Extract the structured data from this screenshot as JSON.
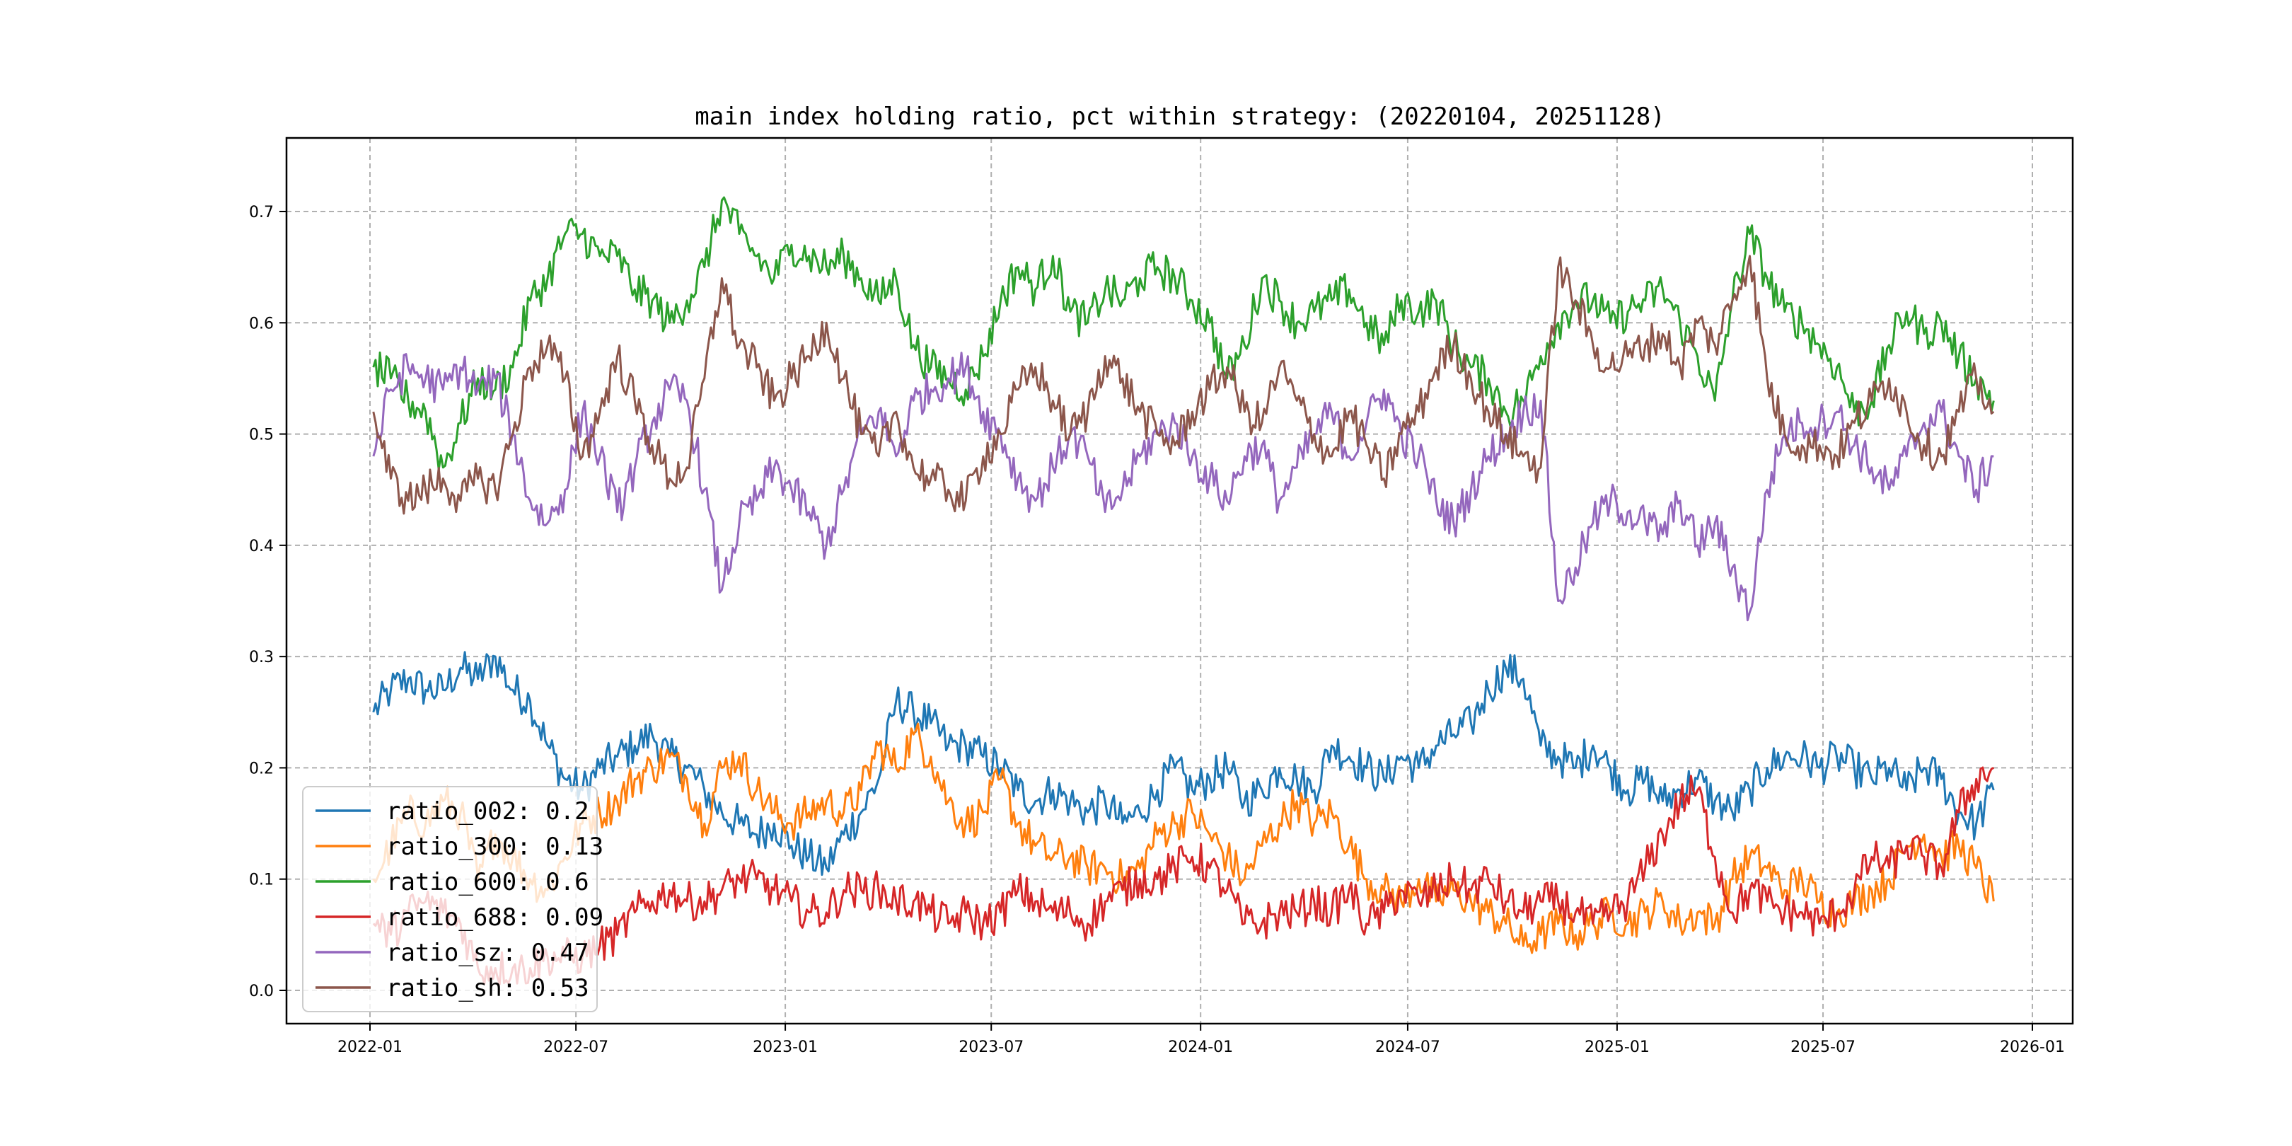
{
  "chart_data": {
    "type": "line",
    "title": "main index holding ratio, pct within strategy: (20220104, 20251128)",
    "xlabel": "",
    "ylabel": "",
    "ylim": [
      -0.035,
      0.765
    ],
    "xlim": [
      "2021-11-15",
      "2026-01-20"
    ],
    "grid": true,
    "legend_position": "lower-left",
    "x_ticks": [
      "2022-01",
      "2022-07",
      "2023-01",
      "2023-07",
      "2024-01",
      "2024-07",
      "2025-01",
      "2025-07",
      "2026-01"
    ],
    "y_ticks": [
      "0.0",
      "0.1",
      "0.2",
      "0.3",
      "0.4",
      "0.5",
      "0.6",
      "0.7"
    ],
    "x_start": "2022-01-04",
    "x_end": "2025-11-28",
    "sampling": "semi-monthly",
    "series": [
      {
        "name": "ratio_002",
        "legend": "ratio_002: 0.2",
        "color": "#1f77b4",
        "values": [
          0.25,
          0.27,
          0.28,
          0.27,
          0.27,
          0.29,
          0.28,
          0.3,
          0.27,
          0.26,
          0.22,
          0.19,
          0.18,
          0.2,
          0.21,
          0.22,
          0.23,
          0.21,
          0.2,
          0.18,
          0.16,
          0.15,
          0.14,
          0.15,
          0.13,
          0.12,
          0.11,
          0.14,
          0.16,
          0.19,
          0.26,
          0.25,
          0.24,
          0.22,
          0.22,
          0.21,
          0.2,
          0.18,
          0.17,
          0.18,
          0.17,
          0.16,
          0.17,
          0.15,
          0.16,
          0.18,
          0.2,
          0.18,
          0.19,
          0.2,
          0.17,
          0.18,
          0.2,
          0.19,
          0.18,
          0.22,
          0.21,
          0.2,
          0.19,
          0.21,
          0.2,
          0.22,
          0.23,
          0.24,
          0.27,
          0.29,
          0.28,
          0.22,
          0.21,
          0.2,
          0.22,
          0.2,
          0.18,
          0.19,
          0.17,
          0.18,
          0.19,
          0.17,
          0.16,
          0.18,
          0.2,
          0.21,
          0.21,
          0.2,
          0.21,
          0.2,
          0.19,
          0.2,
          0.18,
          0.2,
          0.19,
          0.16,
          0.15,
          0.18
        ]
      },
      {
        "name": "ratio_300",
        "legend": "ratio_300: 0.13",
        "color": "#ff7f0e",
        "values": [
          0.1,
          0.13,
          0.16,
          0.15,
          0.17,
          0.16,
          0.1,
          0.14,
          0.12,
          0.1,
          0.09,
          0.12,
          0.15,
          0.16,
          0.17,
          0.19,
          0.2,
          0.21,
          0.19,
          0.15,
          0.2,
          0.21,
          0.18,
          0.16,
          0.15,
          0.16,
          0.17,
          0.16,
          0.18,
          0.22,
          0.2,
          0.23,
          0.21,
          0.17,
          0.15,
          0.16,
          0.19,
          0.15,
          0.13,
          0.12,
          0.12,
          0.11,
          0.11,
          0.1,
          0.11,
          0.14,
          0.15,
          0.16,
          0.14,
          0.12,
          0.1,
          0.13,
          0.15,
          0.17,
          0.15,
          0.16,
          0.13,
          0.1,
          0.09,
          0.08,
          0.1,
          0.08,
          0.09,
          0.08,
          0.07,
          0.06,
          0.04,
          0.05,
          0.06,
          0.05,
          0.06,
          0.07,
          0.06,
          0.07,
          0.08,
          0.06,
          0.07,
          0.06,
          0.1,
          0.12,
          0.11,
          0.09,
          0.1,
          0.08,
          0.07,
          0.08,
          0.09,
          0.1,
          0.13,
          0.14,
          0.12,
          0.13,
          0.11,
          0.08
        ]
      },
      {
        "name": "ratio_600",
        "legend": "ratio_600: 0.6",
        "color": "#2ca02c",
        "values": [
          0.56,
          0.55,
          0.53,
          0.52,
          0.47,
          0.51,
          0.55,
          0.54,
          0.56,
          0.62,
          0.64,
          0.68,
          0.68,
          0.66,
          0.66,
          0.63,
          0.62,
          0.6,
          0.62,
          0.65,
          0.71,
          0.68,
          0.66,
          0.64,
          0.67,
          0.66,
          0.65,
          0.66,
          0.64,
          0.62,
          0.64,
          0.58,
          0.56,
          0.55,
          0.54,
          0.57,
          0.62,
          0.65,
          0.63,
          0.66,
          0.61,
          0.6,
          0.63,
          0.62,
          0.64,
          0.65,
          0.64,
          0.62,
          0.6,
          0.55,
          0.58,
          0.64,
          0.62,
          0.6,
          0.61,
          0.62,
          0.63,
          0.6,
          0.58,
          0.62,
          0.61,
          0.62,
          0.58,
          0.56,
          0.55,
          0.52,
          0.53,
          0.57,
          0.6,
          0.62,
          0.62,
          0.6,
          0.61,
          0.62,
          0.63,
          0.6,
          0.57,
          0.53,
          0.62,
          0.68,
          0.64,
          0.61,
          0.6,
          0.58,
          0.56,
          0.52,
          0.53,
          0.58,
          0.61,
          0.59,
          0.6,
          0.57,
          0.55,
          0.53
        ]
      },
      {
        "name": "ratio_688",
        "legend": "ratio_688: 0.09",
        "color": "#d62728",
        "values": [
          0.06,
          0.05,
          0.07,
          0.08,
          0.07,
          0.06,
          0.02,
          0.02,
          0.02,
          0.02,
          0.03,
          0.03,
          0.03,
          0.04,
          0.05,
          0.07,
          0.08,
          0.09,
          0.08,
          0.08,
          0.09,
          0.1,
          0.1,
          0.09,
          0.08,
          0.07,
          0.07,
          0.09,
          0.09,
          0.09,
          0.08,
          0.08,
          0.07,
          0.06,
          0.07,
          0.06,
          0.07,
          0.09,
          0.08,
          0.07,
          0.07,
          0.06,
          0.08,
          0.09,
          0.1,
          0.1,
          0.11,
          0.12,
          0.11,
          0.09,
          0.06,
          0.06,
          0.07,
          0.07,
          0.08,
          0.07,
          0.09,
          0.06,
          0.07,
          0.09,
          0.08,
          0.09,
          0.1,
          0.09,
          0.1,
          0.08,
          0.07,
          0.08,
          0.08,
          0.07,
          0.06,
          0.07,
          0.08,
          0.11,
          0.14,
          0.17,
          0.18,
          0.12,
          0.07,
          0.09,
          0.08,
          0.07,
          0.07,
          0.06,
          0.07,
          0.09,
          0.12,
          0.11,
          0.13,
          0.12,
          0.11,
          0.16,
          0.19,
          0.2
        ]
      },
      {
        "name": "ratio_sz",
        "legend": "ratio_sz: 0.47",
        "color": "#9467bd",
        "values": [
          0.48,
          0.54,
          0.56,
          0.55,
          0.54,
          0.56,
          0.54,
          0.55,
          0.5,
          0.44,
          0.42,
          0.45,
          0.52,
          0.48,
          0.43,
          0.47,
          0.51,
          0.54,
          0.53,
          0.45,
          0.36,
          0.42,
          0.44,
          0.47,
          0.45,
          0.43,
          0.4,
          0.45,
          0.5,
          0.52,
          0.48,
          0.53,
          0.54,
          0.55,
          0.56,
          0.52,
          0.5,
          0.46,
          0.44,
          0.47,
          0.5,
          0.48,
          0.43,
          0.45,
          0.48,
          0.5,
          0.51,
          0.48,
          0.46,
          0.44,
          0.48,
          0.49,
          0.44,
          0.47,
          0.5,
          0.52,
          0.48,
          0.51,
          0.54,
          0.5,
          0.48,
          0.44,
          0.42,
          0.45,
          0.48,
          0.5,
          0.52,
          0.53,
          0.35,
          0.38,
          0.42,
          0.44,
          0.43,
          0.42,
          0.41,
          0.44,
          0.4,
          0.42,
          0.38,
          0.34,
          0.45,
          0.5,
          0.51,
          0.51,
          0.52,
          0.49,
          0.47,
          0.45,
          0.48,
          0.51,
          0.52,
          0.48,
          0.45,
          0.48
        ]
      },
      {
        "name": "ratio_sh",
        "legend": "ratio_sh: 0.53",
        "color": "#8c564b",
        "values": [
          0.52,
          0.46,
          0.44,
          0.45,
          0.46,
          0.44,
          0.46,
          0.45,
          0.5,
          0.56,
          0.58,
          0.55,
          0.48,
          0.52,
          0.57,
          0.53,
          0.49,
          0.46,
          0.47,
          0.55,
          0.64,
          0.58,
          0.56,
          0.53,
          0.55,
          0.57,
          0.6,
          0.55,
          0.5,
          0.48,
          0.52,
          0.47,
          0.46,
          0.45,
          0.44,
          0.48,
          0.5,
          0.54,
          0.56,
          0.53,
          0.5,
          0.52,
          0.57,
          0.55,
          0.52,
          0.5,
          0.49,
          0.52,
          0.54,
          0.56,
          0.52,
          0.51,
          0.56,
          0.53,
          0.5,
          0.48,
          0.52,
          0.49,
          0.46,
          0.5,
          0.52,
          0.56,
          0.58,
          0.55,
          0.52,
          0.5,
          0.48,
          0.47,
          0.65,
          0.62,
          0.58,
          0.56,
          0.57,
          0.58,
          0.59,
          0.56,
          0.6,
          0.58,
          0.62,
          0.66,
          0.55,
          0.5,
          0.49,
          0.49,
          0.48,
          0.51,
          0.53,
          0.55,
          0.52,
          0.49,
          0.48,
          0.52,
          0.55,
          0.52
        ]
      }
    ]
  }
}
